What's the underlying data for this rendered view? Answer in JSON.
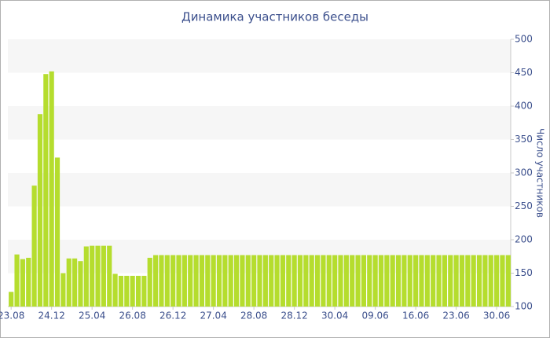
{
  "chart_data": {
    "type": "bar",
    "title": "Динамика участников беседы",
    "y_axis_label": "Число участников",
    "categories": [
      "23.08",
      null,
      null,
      null,
      null,
      null,
      null,
      "24.12",
      null,
      null,
      null,
      null,
      null,
      null,
      "25.04",
      null,
      null,
      null,
      null,
      null,
      null,
      "26.08",
      null,
      null,
      null,
      null,
      null,
      null,
      "26.12",
      null,
      null,
      null,
      null,
      null,
      null,
      "27.04",
      null,
      null,
      null,
      null,
      null,
      null,
      "28.08",
      null,
      null,
      null,
      null,
      null,
      null,
      "28.12",
      null,
      null,
      null,
      null,
      null,
      null,
      "30.04",
      null,
      null,
      null,
      null,
      null,
      null,
      "09.06",
      null,
      null,
      null,
      null,
      null,
      null,
      "16.06",
      null,
      null,
      null,
      null,
      null,
      null,
      "23.06",
      null,
      null,
      null,
      null,
      null,
      null,
      "30.06",
      null,
      null
    ],
    "values": [
      122,
      178,
      171,
      173,
      281,
      388,
      448,
      452,
      323,
      150,
      172,
      172,
      168,
      190,
      191,
      191,
      191,
      191,
      149,
      146,
      146,
      146,
      146,
      146,
      173,
      177,
      177,
      177,
      177,
      177,
      177,
      177,
      177,
      177,
      177,
      177,
      177,
      177,
      177,
      177,
      177,
      177,
      177,
      177,
      177,
      177,
      177,
      177,
      177,
      177,
      177,
      177,
      177,
      177,
      177,
      177,
      177,
      177,
      177,
      177,
      177,
      177,
      177,
      177,
      177,
      177,
      177,
      177,
      177,
      177,
      177,
      177,
      177,
      177,
      177,
      177,
      177,
      177,
      177,
      177,
      177,
      177,
      177,
      177,
      177,
      177,
      177
    ],
    "color": "#b5dd2e",
    "ylim": [
      100,
      500
    ],
    "yticks": [
      100,
      150,
      200,
      250,
      300,
      350,
      400,
      450,
      500
    ],
    "y_axis_side": "right",
    "grid_bands": true
  }
}
